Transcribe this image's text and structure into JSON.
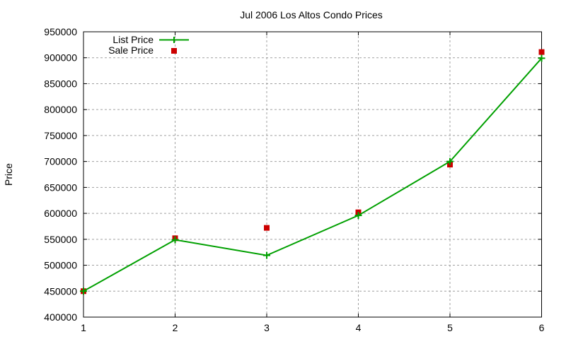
{
  "chart_data": {
    "type": "line",
    "title": "Jul 2006 Los Altos Condo Prices",
    "xlabel": "",
    "ylabel": "Price",
    "x": [
      1,
      2,
      3,
      4,
      5,
      6
    ],
    "xlim": [
      1,
      6
    ],
    "ylim": [
      400000,
      950000
    ],
    "xticks": [
      "1",
      "2",
      "3",
      "4",
      "5",
      "6"
    ],
    "yticks": [
      "400000",
      "450000",
      "500000",
      "550000",
      "600000",
      "650000",
      "700000",
      "750000",
      "800000",
      "850000",
      "900000",
      "950000"
    ],
    "grid": true,
    "legend_position": "top-left",
    "series": [
      {
        "name": "List Price",
        "style": "linespoints",
        "marker": "plus",
        "color": "#00a000",
        "values": [
          450000,
          549000,
          519000,
          596000,
          700000,
          899000
        ]
      },
      {
        "name": "Sale Price",
        "style": "points",
        "marker": "square",
        "color": "#cc0000",
        "values": [
          450000,
          552000,
          572000,
          602000,
          694000,
          911000
        ]
      }
    ]
  }
}
